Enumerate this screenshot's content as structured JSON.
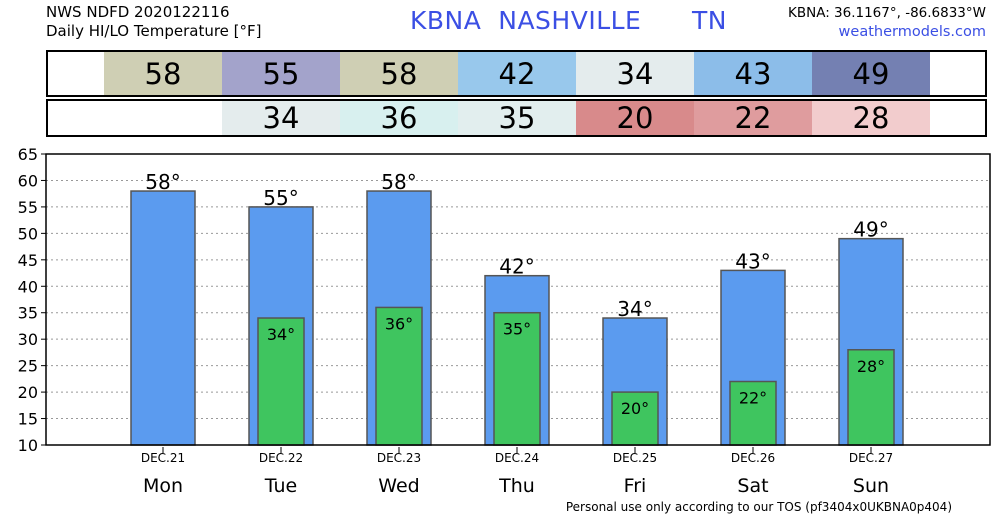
{
  "header": {
    "line1": "NWS NDFD 2020122116",
    "line2": "Daily HI/LO Temperature [°F]",
    "center": "KBNA  NASHVILLE      TN",
    "coords": "KBNA: 36.1167°, -86.6833°W",
    "site": "weathermodels.com"
  },
  "colors": {
    "high_bar": "#5b9bef",
    "low_bar": "#3fc55f",
    "title_blue": "#3b4fe4"
  },
  "hi_row": [
    {
      "value": "58",
      "color": "#cfcfb4"
    },
    {
      "value": "55",
      "color": "#a3a3cb"
    },
    {
      "value": "58",
      "color": "#cfcfb4"
    },
    {
      "value": "42",
      "color": "#98c8ec"
    },
    {
      "value": "34",
      "color": "#e4eced"
    },
    {
      "value": "43",
      "color": "#8cbde9"
    },
    {
      "value": "49",
      "color": "#7480b2"
    }
  ],
  "lo_row": [
    {
      "value": "",
      "color": "#ffffff"
    },
    {
      "value": "34",
      "color": "#e4eced"
    },
    {
      "value": "36",
      "color": "#d8f0ef"
    },
    {
      "value": "35",
      "color": "#e2eeee"
    },
    {
      "value": "20",
      "color": "#d88a8b"
    },
    {
      "value": "22",
      "color": "#df9c9e"
    },
    {
      "value": "28",
      "color": "#f2cccd"
    }
  ],
  "footer": "Personal use only according to our TOS (pf3404x0UKBNA0p404)",
  "chart_data": {
    "type": "bar",
    "categories": [
      "Mon",
      "Tue",
      "Wed",
      "Thu",
      "Fri",
      "Sat",
      "Sun"
    ],
    "dates": [
      "DEC.21",
      "DEC.22",
      "DEC.23",
      "DEC.24",
      "DEC.25",
      "DEC.26",
      "DEC.27"
    ],
    "series": [
      {
        "values": [
          58,
          55,
          58,
          42,
          34,
          43,
          49
        ],
        "labels": [
          "58°",
          "55°",
          "58°",
          "42°",
          "34°",
          "43°",
          "49°"
        ],
        "color": "#5b9bef"
      },
      {
        "values": [
          null,
          34,
          36,
          35,
          20,
          22,
          28
        ],
        "labels": [
          "",
          "34°",
          "36°",
          "35°",
          "20°",
          "22°",
          "28°"
        ],
        "color": "#3fc55f"
      }
    ],
    "yticks": [
      "10",
      "15",
      "20",
      "25",
      "30",
      "35",
      "40",
      "45",
      "50",
      "55",
      "60",
      "65"
    ],
    "ylim": [
      10,
      65
    ],
    "grid": true
  }
}
